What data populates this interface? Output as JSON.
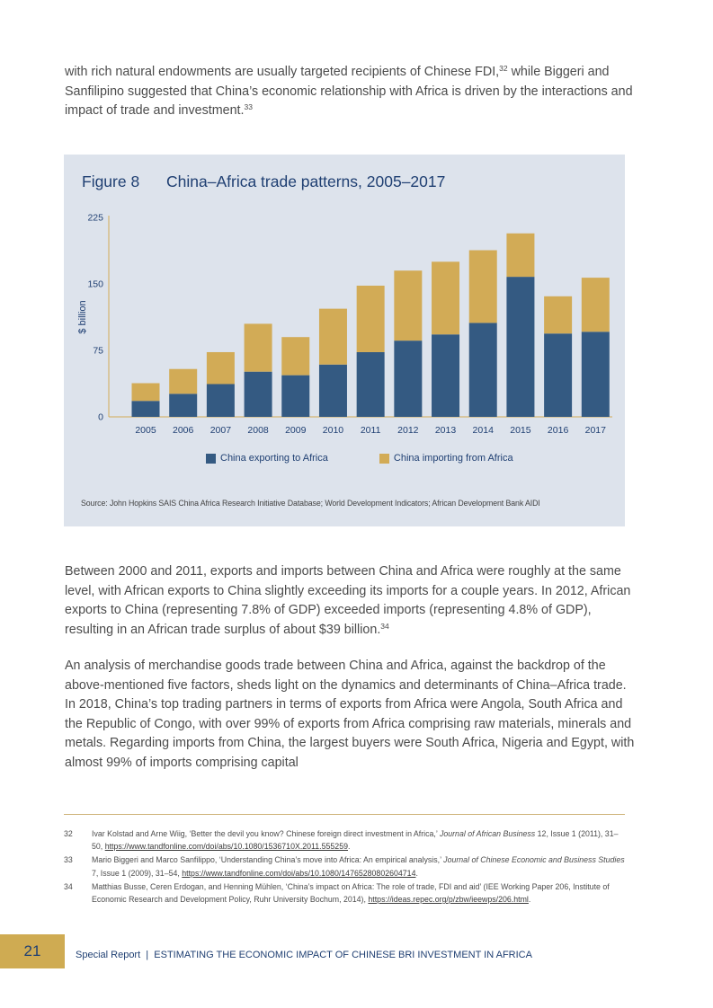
{
  "intro": {
    "line1": "with rich natural endowments are usually targeted recipients of Chinese FDI,",
    "sup1": "32",
    "line1b": " while Biggeri and Sanfilipino suggested that China’s economic relationship with Africa is driven by the interactions and impact of trade and investment.",
    "sup2": "33"
  },
  "figure": {
    "number": "Figure 8",
    "title": "China–Africa trade patterns, 2005–2017",
    "source": "Source: John Hopkins SAIS China Africa Research Initiative Database; World Development Indicators; African Development Bank AIDI"
  },
  "chart_data": {
    "type": "bar",
    "stacked": true,
    "title": "China–Africa trade patterns, 2005–2017",
    "xlabel": "",
    "ylabel": "$ billion",
    "ylim": [
      0,
      225
    ],
    "yticks": [
      0,
      75,
      150,
      225
    ],
    "grid": false,
    "legend_position": "bottom",
    "categories": [
      "2005",
      "2006",
      "2007",
      "2008",
      "2009",
      "2010",
      "2011",
      "2012",
      "2013",
      "2014",
      "2015",
      "2016",
      "2017"
    ],
    "series": [
      {
        "name": "China exporting to Africa",
        "color": "#345a82",
        "values": [
          18,
          26,
          37,
          51,
          47,
          59,
          73,
          86,
          93,
          106,
          158,
          94,
          96
        ]
      },
      {
        "name": "China importing from Africa",
        "color": "#d2ab56",
        "values": [
          20,
          28,
          36,
          54,
          43,
          63,
          75,
          79,
          82,
          82,
          49,
          42,
          61
        ]
      }
    ]
  },
  "paragraph_trade": {
    "text": "Between 2000 and 2011, exports and imports between China and Africa were roughly at the same level, with African exports to China slightly exceeding its imports for a couple years. In 2012, African exports to China (representing 7.8% of GDP) exceeded imports (representing 4.8% of GDP), resulting in an African trade surplus of about $39 billion.",
    "sup": "34"
  },
  "paragraph_analysis": {
    "text": "An analysis of merchandise goods trade between China and Africa, against the backdrop of the above-mentioned five factors, sheds light on the dynamics and determinants of China–Africa trade. In 2018, China’s top trading partners in terms of exports from Africa were Angola, South Africa and the Republic of Congo, with over 99% of exports from Africa comprising raw materials, minerals and metals. Regarding imports from China, the largest buyers were South Africa, Nigeria and Egypt, with almost 99% of imports comprising capital"
  },
  "footnotes": [
    {
      "num": "32",
      "pre": "Ivar Kolstad and Arne Wiig, ‘Better the devil you know? Chinese foreign direct investment in Africa,’ ",
      "journal": "Journal of African Business",
      "post": " 12, Issue 1 (2011), 31–50, ",
      "link": "https://www.tandfonline.com/doi/abs/10.1080/1536710X.2011.555259",
      "end": "."
    },
    {
      "num": "33",
      "pre": "Mario Biggeri and Marco Sanfilippo, ‘Understanding China’s move into Africa: An empirical analysis,’ ",
      "journal": "Journal of Chinese Economic and Business Studies",
      "post": " 7, Issue 1 (2009), 31–54, ",
      "link": "https://www.tandfonline.com/doi/abs/10.1080/14765280802604714",
      "end": "."
    },
    {
      "num": "34",
      "pre": "Matthias Busse, Ceren Erdogan, and Henning Mühlen, ‘China’s impact on Africa: The role of trade, FDI and aid’ (IEE Working Paper 206, Institute of Economic Research and Development Policy, Ruhr University Bochum, 2014), ",
      "journal": "",
      "post": "",
      "link": "https://ideas.repec.org/p/zbw/ieewps/206.html",
      "end": "."
    }
  ],
  "footer": {
    "page_number": "21",
    "label": "Special Report",
    "separator": "|",
    "title": "ESTIMATING THE ECONOMIC IMPACT OF CHINESE BRI INVESTMENT IN AFRICA"
  }
}
